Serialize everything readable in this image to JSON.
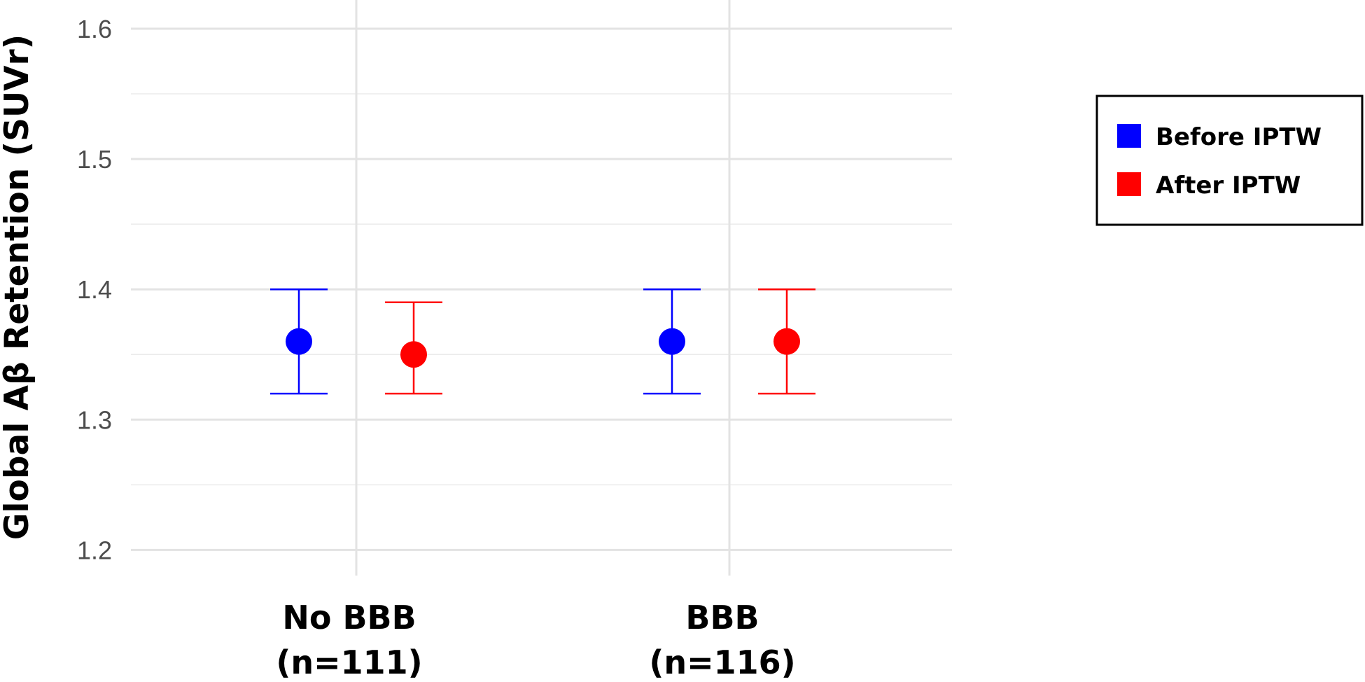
{
  "chart_data": {
    "type": "scatter",
    "subtype": "point-with-error-bars",
    "title": "",
    "xlabel": "",
    "ylabel": "Global Aβ Retention (SUVr)",
    "ylim": [
      1.17,
      1.615
    ],
    "yticks": [
      "1.2",
      "1.3",
      "1.4",
      "1.5",
      "1.6"
    ],
    "grid": true,
    "legend_position": "right",
    "categories": [
      {
        "line1": "No BBB",
        "line2": "(n=111)"
      },
      {
        "line1": "BBB",
        "line2": "(n=116)"
      }
    ],
    "series": [
      {
        "name": "Before IPTW",
        "color": "#0000ff",
        "values": [
          1.36,
          1.36
        ],
        "lower": [
          1.32,
          1.32
        ],
        "upper": [
          1.4,
          1.4
        ]
      },
      {
        "name": "After IPTW",
        "color": "#ff0000",
        "values": [
          1.35,
          1.36
        ],
        "lower": [
          1.32,
          1.32
        ],
        "upper": [
          1.39,
          1.4
        ]
      }
    ]
  }
}
